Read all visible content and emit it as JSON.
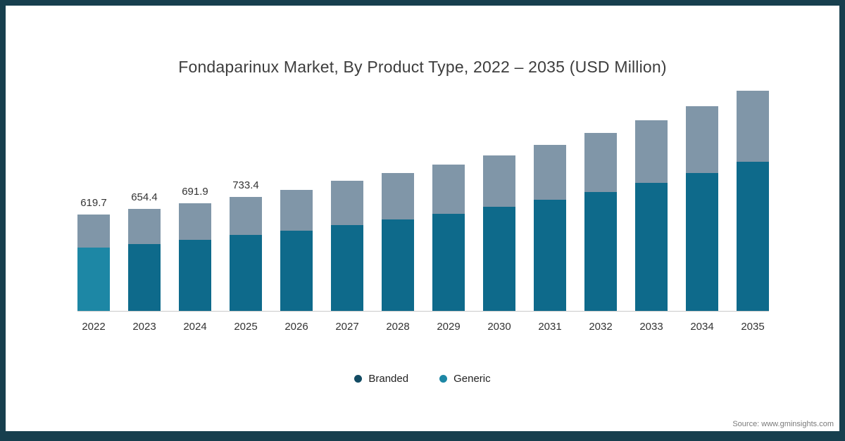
{
  "title": "Fondaparinux Market, By Product Type, 2022 – 2035 (USD Million)",
  "source": "Source: www.gminsights.com",
  "colors": {
    "border": "#173F4E",
    "branded": "#0E6A8B",
    "branded_first_bar": "#1D87A5",
    "generic": "#8096A8",
    "legend_branded_dot": "#124B63",
    "legend_generic_dot": "#1D87A5",
    "title_text": "#3D3D3D",
    "axis_text": "#333333",
    "baseline": "#C9C9C9",
    "source_text": "#7A7A7A"
  },
  "legend": [
    {
      "label": "Branded",
      "dot_color": "#124B63"
    },
    {
      "label": "Generic",
      "dot_color": "#1D87A5"
    }
  ],
  "chart_data": {
    "type": "bar",
    "stacked": true,
    "title": "Fondaparinux Market, By Product Type, 2022 – 2035 (USD Million)",
    "unit": "USD Million",
    "grid": false,
    "legend_position": "bottom",
    "categories": [
      "2022",
      "2023",
      "2024",
      "2025",
      "2026",
      "2027",
      "2028",
      "2029",
      "2030",
      "2031",
      "2032",
      "2033",
      "2034",
      "2035"
    ],
    "series": [
      {
        "name": "Branded",
        "values": [
          405.0,
          429.4,
          456.9,
          487.4,
          518,
          552,
          588,
          626,
          668,
          714,
          766,
          823,
          886,
          957
        ]
      },
      {
        "name": "Generic",
        "values": [
          214.7,
          225.0,
          235.0,
          246.0,
          262,
          283,
          299,
          314,
          334,
          352,
          377,
          403,
          431,
          459
        ]
      }
    ],
    "totals": [
      619.7,
      654.4,
      691.9,
      733.4,
      780,
      835,
      887,
      940,
      1002,
      1066,
      1143,
      1226,
      1317,
      1416
    ],
    "total_labels": [
      "619.7",
      "654.4",
      "691.9",
      "733.4",
      "",
      "",
      "",
      "",
      "",
      "",
      "",
      "",
      "",
      ""
    ],
    "ylim": [
      0,
      1450
    ]
  }
}
